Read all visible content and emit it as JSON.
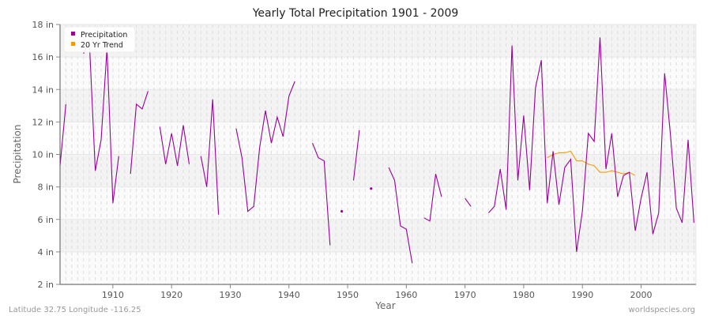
{
  "header": {
    "title": "Yearly Total Precipitation 1901 - 2009"
  },
  "axes": {
    "xlabel": "Year",
    "ylabel": "Precipitation",
    "y_ticks": [
      "2 in",
      "4 in",
      "6 in",
      "8 in",
      "10 in",
      "12 in",
      "14 in",
      "16 in",
      "18 in"
    ],
    "x_ticks": [
      "1910",
      "1920",
      "1930",
      "1940",
      "1950",
      "1960",
      "1970",
      "1980",
      "1990",
      "2000"
    ]
  },
  "legend": {
    "items": [
      {
        "label": "Precipitation",
        "color": "#990099"
      },
      {
        "label": "20 Yr Trend",
        "color": "#ff9900"
      }
    ]
  },
  "footer": {
    "location": "Latitude 32.75 Longitude -116.25",
    "source": "worldspecies.org"
  },
  "colors": {
    "precipitation": "#990099",
    "trend": "#ff9900",
    "band_light": "#fbfbfb",
    "band_dark": "#f3f3f3",
    "grid": "#dddddd",
    "axis": "#555555"
  },
  "chart_data": {
    "type": "line",
    "title": "Yearly Total Precipitation 1901 - 2009",
    "xlabel": "Year",
    "ylabel": "Precipitation",
    "units": "in",
    "xlim": [
      1901,
      2009
    ],
    "ylim": [
      2,
      18
    ],
    "y_ticks": [
      2,
      4,
      6,
      8,
      10,
      12,
      14,
      16,
      18
    ],
    "x_ticks": [
      1910,
      1920,
      1930,
      1940,
      1950,
      1960,
      1970,
      1980,
      1990,
      2000
    ],
    "grid": true,
    "legend_position": "top-left",
    "series": [
      {
        "name": "Precipitation",
        "color": "#990099",
        "points": [
          [
            1901,
            9.3
          ],
          [
            1902,
            13.1
          ],
          [
            1903,
            null
          ],
          [
            1904,
            null
          ],
          [
            1905,
            16.2
          ],
          [
            1906,
            17.0
          ],
          [
            1907,
            9.0
          ],
          [
            1908,
            10.9
          ],
          [
            1909,
            16.5
          ],
          [
            1910,
            7.0
          ],
          [
            1911,
            9.9
          ],
          [
            1912,
            null
          ],
          [
            1913,
            8.8
          ],
          [
            1914,
            13.1
          ],
          [
            1915,
            12.8
          ],
          [
            1916,
            13.9
          ],
          [
            1917,
            null
          ],
          [
            1918,
            11.7
          ],
          [
            1919,
            9.4
          ],
          [
            1920,
            11.3
          ],
          [
            1921,
            9.3
          ],
          [
            1922,
            11.8
          ],
          [
            1923,
            9.4
          ],
          [
            1924,
            null
          ],
          [
            1925,
            9.9
          ],
          [
            1926,
            8.0
          ],
          [
            1927,
            13.4
          ],
          [
            1928,
            6.3
          ],
          [
            1929,
            null
          ],
          [
            1930,
            null
          ],
          [
            1931,
            11.6
          ],
          [
            1932,
            9.8
          ],
          [
            1933,
            6.5
          ],
          [
            1934,
            6.8
          ],
          [
            1935,
            10.4
          ],
          [
            1936,
            12.7
          ],
          [
            1937,
            10.7
          ],
          [
            1938,
            12.3
          ],
          [
            1939,
            11.1
          ],
          [
            1940,
            13.6
          ],
          [
            1941,
            14.5
          ],
          [
            1942,
            null
          ],
          [
            1943,
            null
          ],
          [
            1944,
            10.7
          ],
          [
            1945,
            9.8
          ],
          [
            1946,
            9.6
          ],
          [
            1947,
            4.4
          ],
          [
            1948,
            null
          ],
          [
            1949,
            6.5
          ],
          [
            1950,
            null
          ],
          [
            1951,
            8.4
          ],
          [
            1952,
            11.5
          ],
          [
            1953,
            null
          ],
          [
            1954,
            7.9
          ],
          [
            1955,
            null
          ],
          [
            1956,
            null
          ],
          [
            1957,
            9.2
          ],
          [
            1958,
            8.4
          ],
          [
            1959,
            5.6
          ],
          [
            1960,
            5.4
          ],
          [
            1961,
            3.3
          ],
          [
            1962,
            null
          ],
          [
            1963,
            6.1
          ],
          [
            1964,
            5.9
          ],
          [
            1965,
            8.8
          ],
          [
            1966,
            7.4
          ],
          [
            1967,
            null
          ],
          [
            1968,
            null
          ],
          [
            1969,
            null
          ],
          [
            1970,
            7.3
          ],
          [
            1971,
            6.8
          ],
          [
            1972,
            null
          ],
          [
            1973,
            null
          ],
          [
            1974,
            6.4
          ],
          [
            1975,
            6.8
          ],
          [
            1976,
            9.1
          ],
          [
            1977,
            6.6
          ],
          [
            1978,
            16.7
          ],
          [
            1979,
            8.4
          ],
          [
            1980,
            12.4
          ],
          [
            1981,
            7.8
          ],
          [
            1982,
            14.1
          ],
          [
            1983,
            15.8
          ],
          [
            1984,
            7.0
          ],
          [
            1985,
            10.2
          ],
          [
            1986,
            6.9
          ],
          [
            1987,
            9.2
          ],
          [
            1988,
            9.7
          ],
          [
            1989,
            4.0
          ],
          [
            1990,
            6.5
          ],
          [
            1991,
            11.3
          ],
          [
            1992,
            10.8
          ],
          [
            1993,
            17.2
          ],
          [
            1994,
            9.1
          ],
          [
            1995,
            11.3
          ],
          [
            1996,
            7.4
          ],
          [
            1997,
            8.7
          ],
          [
            1998,
            8.9
          ],
          [
            1999,
            5.3
          ],
          [
            2000,
            7.3
          ],
          [
            2001,
            8.9
          ],
          [
            2002,
            5.1
          ],
          [
            2003,
            6.4
          ],
          [
            2004,
            15.0
          ],
          [
            2005,
            11.2
          ],
          [
            2006,
            6.7
          ],
          [
            2007,
            5.8
          ],
          [
            2008,
            10.9
          ],
          [
            2009,
            5.8
          ]
        ]
      },
      {
        "name": "20 Yr Trend",
        "color": "#ff9900",
        "points": [
          [
            1984,
            9.8
          ],
          [
            1985,
            10.0
          ],
          [
            1986,
            10.1
          ],
          [
            1987,
            10.1
          ],
          [
            1988,
            10.2
          ],
          [
            1989,
            9.6
          ],
          [
            1990,
            9.6
          ],
          [
            1991,
            9.4
          ],
          [
            1992,
            9.3
          ],
          [
            1993,
            8.9
          ],
          [
            1994,
            8.9
          ],
          [
            1995,
            9.0
          ],
          [
            1996,
            8.9
          ],
          [
            1997,
            8.8
          ],
          [
            1998,
            8.9
          ],
          [
            1999,
            8.7
          ]
        ]
      }
    ]
  }
}
